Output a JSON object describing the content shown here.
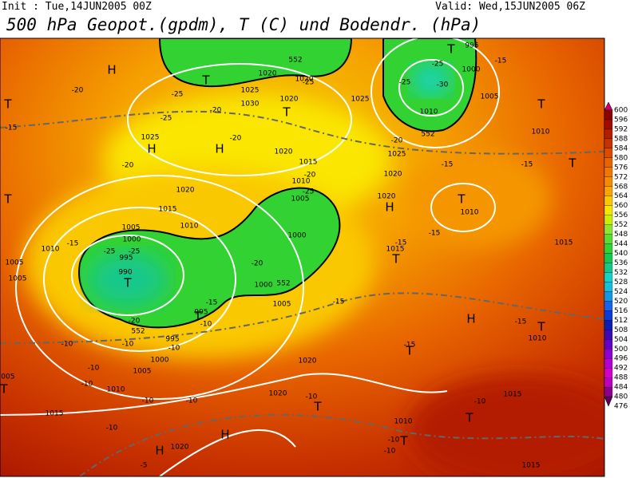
{
  "header": {
    "init": "Init : Tue,14JUN2005 00Z",
    "valid": "Valid: Wed,15JUN2005 06Z",
    "title": "500 hPa Geopot.(gpdm), T (C) und Bodendr. (hPa)"
  },
  "colorbar": {
    "labels": [
      "600",
      "596",
      "592",
      "588",
      "584",
      "580",
      "576",
      "572",
      "568",
      "564",
      "560",
      "556",
      "552",
      "548",
      "544",
      "540",
      "536",
      "532",
      "528",
      "524",
      "520",
      "516",
      "512",
      "508",
      "504",
      "500",
      "496",
      "492",
      "488",
      "484",
      "480",
      "476"
    ],
    "colors": [
      "#c8006e",
      "#8c0000",
      "#a00a00",
      "#b41e00",
      "#c83200",
      "#dc4b00",
      "#e86400",
      "#f07800",
      "#f58c00",
      "#faa500",
      "#fac800",
      "#f5e600",
      "#c8f000",
      "#8ce632",
      "#5adc32",
      "#32d232",
      "#14c850",
      "#14c88c",
      "#14d2c8",
      "#14bedc",
      "#1496e6",
      "#1464f0",
      "#0a3cdc",
      "#0a1eb4",
      "#3c0ab4",
      "#6400c8",
      "#8c00d2",
      "#b400d2",
      "#d200c8",
      "#be00be",
      "#8c008c",
      "#5a005a"
    ]
  },
  "map": {
    "labels": [
      "H",
      "T",
      "H",
      "H",
      "T",
      "T",
      "T",
      "T",
      "T",
      "T",
      "H",
      "T",
      "T",
      "T",
      "H",
      "T",
      "T",
      "T",
      "T",
      "T",
      "H",
      "H",
      "T",
      "T",
      "1020",
      "1020",
      "1025",
      "1030",
      "1020",
      "1025",
      "1000",
      "1005",
      "1010",
      "1010",
      "1025",
      "1020",
      "1015",
      "1020",
      "1025",
      "1010",
      "1005",
      "1020",
      "1010",
      "1020",
      "1015",
      "1010",
      "1005",
      "1010",
      "1000",
      "995",
      "990",
      "1005",
      "1005",
      "1000",
      "1000",
      "1005",
      "1015",
      "995",
      "995",
      "1000",
      "1005",
      "1010",
      "1015",
      "1020",
      "1020",
      "1010",
      "1015",
      "1010",
      "1015",
      "1015",
      "1020",
      "995",
      "1005",
      "-20",
      "-25",
      "-20",
      "-25",
      "-15",
      "-20",
      "-20",
      "-25",
      "-25",
      "-25",
      "-30",
      "-15",
      "-20",
      "-15",
      "-15",
      "-20",
      "-25",
      "-15",
      "-25",
      "-25",
      "-20",
      "-15",
      "-15",
      "-15",
      "-10",
      "-15",
      "-20",
      "-10",
      "-10",
      "-10",
      "-10",
      "-10",
      "-10",
      "-10",
      "-10",
      "-15",
      "-10",
      "-15",
      "-10",
      "-10",
      "-5",
      "-10",
      "552",
      "552",
      "552",
      "552"
    ]
  }
}
